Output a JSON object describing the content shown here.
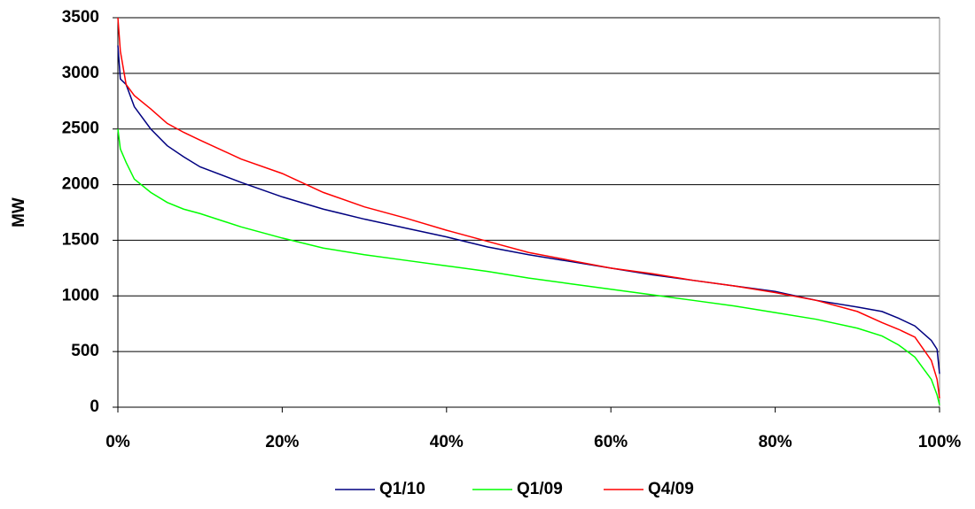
{
  "chart_data": {
    "type": "line",
    "y_label": "MW",
    "x": [
      0,
      0.3,
      1,
      2,
      4,
      6,
      8,
      10,
      15,
      20,
      25,
      30,
      35,
      40,
      45,
      50,
      55,
      60,
      65,
      70,
      75,
      80,
      85,
      90,
      93,
      95,
      97,
      99,
      99.7,
      100
    ],
    "series": [
      {
        "name": "Q1/10",
        "color": "#000080",
        "values": [
          3250,
          2950,
          2900,
          2700,
          2500,
          2350,
          2250,
          2160,
          2020,
          1890,
          1780,
          1690,
          1610,
          1530,
          1440,
          1370,
          1310,
          1250,
          1190,
          1140,
          1090,
          1040,
          960,
          900,
          860,
          800,
          730,
          600,
          520,
          300
        ]
      },
      {
        "name": "Q1/09",
        "color": "#00ff00",
        "values": [
          2500,
          2320,
          2200,
          2050,
          1930,
          1840,
          1780,
          1740,
          1620,
          1520,
          1430,
          1370,
          1320,
          1270,
          1220,
          1160,
          1110,
          1060,
          1010,
          960,
          910,
          850,
          790,
          710,
          640,
          560,
          450,
          250,
          110,
          20
        ]
      },
      {
        "name": "Q4/09",
        "color": "#ff0000",
        "values": [
          3500,
          3200,
          2900,
          2800,
          2680,
          2550,
          2470,
          2400,
          2230,
          2100,
          1930,
          1800,
          1700,
          1590,
          1490,
          1390,
          1320,
          1250,
          1200,
          1140,
          1090,
          1030,
          960,
          860,
          760,
          700,
          630,
          420,
          250,
          80
        ]
      }
    ],
    "xlim": [
      0,
      100
    ],
    "xticks": [
      {
        "value": 0,
        "label": "0%"
      },
      {
        "value": 20,
        "label": "20%"
      },
      {
        "value": 40,
        "label": "40%"
      },
      {
        "value": 60,
        "label": "60%"
      },
      {
        "value": 80,
        "label": "80%"
      },
      {
        "value": 100,
        "label": "100%"
      }
    ],
    "ylim": [
      0,
      3500
    ],
    "yticks": [
      0,
      500,
      1000,
      1500,
      2000,
      2500,
      3000,
      3500
    ],
    "grid": true,
    "legend": "bottom"
  }
}
